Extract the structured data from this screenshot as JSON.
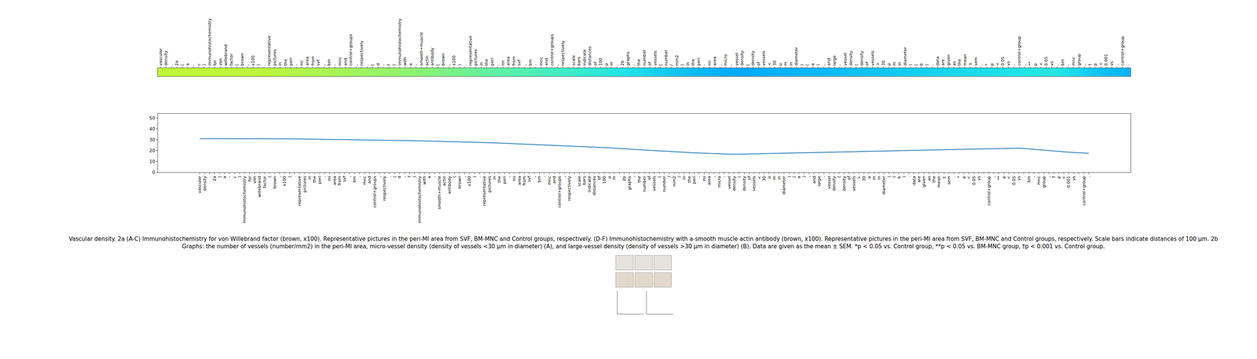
{
  "chart_data": [
    {
      "type": "heatmap",
      "tick_labels": "x",
      "categories": [
        "vascular",
        "density",
        ".",
        "2a",
        "(",
        "a",
        "-",
        "c",
        ")",
        "immunohistochemistry",
        "for",
        "von",
        "willebrand",
        "factor",
        "(",
        "brown",
        ",",
        "x100",
        ")",
        ".",
        "representative",
        "pictures",
        "in",
        "the",
        "peri",
        "-",
        "mi",
        "area",
        "from",
        "svf",
        ",",
        "bm",
        "-",
        "mnc",
        "and",
        "control+groups",
        ",",
        "respectively",
        ".",
        "(",
        "d",
        "-",
        "f",
        ")",
        "immunohistochemistry",
        "with",
        "a",
        "-",
        "smooth+muscle",
        "actin",
        "antibody",
        "(",
        "brown",
        ",",
        "x100",
        ")",
        ".",
        "representative",
        "pictures",
        "in",
        "the",
        "peri",
        "-",
        "mi",
        "area",
        "from",
        "svf",
        ",",
        "bm",
        "-",
        "mnc",
        "and",
        "control+groups",
        ",",
        "respectively",
        ".",
        "scale",
        "bars",
        "indicate",
        "distances",
        "of",
        "100",
        "μ",
        "m",
        ".",
        "2b",
        "graphs",
        ":",
        "the",
        "number",
        "of",
        "vessels",
        "(",
        "number",
        "/",
        "mm2",
        ")",
        "in",
        "the",
        "peri",
        "-",
        "mi",
        "area",
        ",",
        "micro",
        "-",
        "vessel",
        "density",
        "(",
        "density",
        "of",
        "vessels",
        "<",
        "30",
        "μ",
        "m",
        "in",
        "diameter",
        ")",
        "(",
        "a",
        ")",
        ",",
        "and",
        "large",
        "-",
        "vessel",
        "density",
        "(",
        "density",
        "of",
        "vessels",
        ">",
        "30",
        "μ",
        "m",
        "in",
        "diameter",
        ")",
        "(",
        "b",
        ")",
        ".",
        "data",
        "are",
        "given",
        "as",
        "the",
        "mean",
        "±",
        "sem",
        ".",
        "*",
        "p",
        "<",
        "0.05",
        "vs",
        ".",
        "control+group",
        ",",
        "**",
        "p",
        "<",
        "0.05",
        "vs",
        ".",
        "bm",
        "-",
        "mnc",
        "group",
        ",",
        "†",
        "p",
        "<",
        "0.001",
        "vs",
        ".",
        "control+group",
        "."
      ],
      "values": [
        31.0,
        31.0,
        31.0,
        31.0,
        31.0,
        31.0,
        31.0,
        31.0,
        31.0,
        31.0,
        31.0,
        31.0,
        31.0,
        31.0,
        31.0,
        30.9,
        30.9,
        30.9,
        30.9,
        30.8,
        30.8,
        30.7,
        30.6,
        30.6,
        30.5,
        30.4,
        30.4,
        30.3,
        30.2,
        30.2,
        30.1,
        30.0,
        30.0,
        29.9,
        29.8,
        29.7,
        29.6,
        29.5,
        29.5,
        29.4,
        29.3,
        29.2,
        29.2,
        29.1,
        29.0,
        28.9,
        28.8,
        28.7,
        28.6,
        28.5,
        28.4,
        28.2,
        28.1,
        28.0,
        27.9,
        27.7,
        27.6,
        27.4,
        27.3,
        27.1,
        26.9,
        26.8,
        26.6,
        26.4,
        26.3,
        26.1,
        25.9,
        25.8,
        25.6,
        25.4,
        25.2,
        25.0,
        24.8,
        24.6,
        24.4,
        24.2,
        24.0,
        23.8,
        23.5,
        23.3,
        23.1,
        22.8,
        22.6,
        22.3,
        22.0,
        21.8,
        21.5,
        21.2,
        21.0,
        20.7,
        20.4,
        20.1,
        19.8,
        19.6,
        19.3,
        19.0,
        18.8,
        18.5,
        18.3,
        18.0,
        17.8,
        17.6,
        17.4,
        17.2,
        17.0,
        16.9,
        16.8,
        16.7,
        16.8,
        16.9,
        17.0,
        17.1,
        17.2,
        17.3,
        17.4,
        17.5,
        17.6,
        17.7,
        17.7,
        17.8,
        17.9,
        18.0,
        18.1,
        18.2,
        18.3,
        18.4,
        18.5,
        18.6,
        18.7,
        18.8,
        18.9,
        19.0,
        19.1,
        19.2,
        19.3,
        19.4,
        19.6,
        19.7,
        19.8,
        19.9,
        20.0,
        20.1,
        20.2,
        20.3,
        20.4,
        20.5,
        20.6,
        20.7,
        20.8,
        20.9,
        21.0,
        21.1,
        21.2,
        21.3,
        21.4,
        21.5,
        21.6,
        21.7,
        21.8,
        21.9,
        22.0,
        22.1,
        22.2,
        22.2,
        22.3,
        22.0,
        21.6,
        21.2,
        20.8,
        20.4,
        20.0,
        19.6,
        19.2,
        18.9,
        18.6,
        18.3,
        18.0,
        17.8,
        17.5
      ]
    },
    {
      "type": "line",
      "color": "#1f77b4",
      "grid": false,
      "ylim": [
        0,
        54
      ],
      "yticks": [
        0,
        10,
        20,
        30,
        40,
        50
      ],
      "categories": [
        "vascular",
        "density",
        ".",
        "2a",
        "(",
        "a",
        "-",
        "c",
        ")",
        "immunohistochemistry",
        "for",
        "von",
        "willebrand",
        "factor",
        "(",
        "brown",
        ",",
        "x100",
        ")",
        ".",
        "representative",
        "pictures",
        "in",
        "the",
        "peri",
        "-",
        "mi",
        "area",
        "from",
        "svf",
        ",",
        "bm",
        "-",
        "mnc",
        "and",
        "control+groups",
        ",",
        "respectively",
        ".",
        "(",
        "d",
        "-",
        "f",
        ")",
        "immunohistochemistry",
        "with",
        "a",
        "-",
        "smooth+muscle",
        "actin",
        "antibody",
        "(",
        "brown",
        ",",
        "x100",
        ")",
        ".",
        "representative",
        "pictures",
        "in",
        "the",
        "peri",
        "-",
        "mi",
        "area",
        "from",
        "svf",
        ",",
        "bm",
        "-",
        "mnc",
        "and",
        "control+groups",
        ",",
        "respectively",
        ".",
        "scale",
        "bars",
        "indicate",
        "distances",
        "of",
        "100",
        "μ",
        "m",
        ".",
        "2b",
        "graphs",
        ":",
        "the",
        "number",
        "of",
        "vessels",
        "(",
        "number",
        "/",
        "mm2",
        ")",
        "in",
        "the",
        "peri",
        "-",
        "mi",
        "area",
        ",",
        "micro",
        "-",
        "vessel",
        "density",
        "(",
        "density",
        "of",
        "vessels",
        "<",
        "30",
        "μ",
        "m",
        "in",
        "diameter",
        ")",
        "(",
        "a",
        ")",
        ",",
        "and",
        "large",
        "-",
        "vessel",
        "density",
        "(",
        "density",
        "of",
        "vessels",
        ">",
        "30",
        "μ",
        "m",
        "in",
        "diameter",
        ")",
        "(",
        "b",
        ")",
        ".",
        "data",
        "are",
        "given",
        "as",
        "the",
        "mean",
        "±",
        "sem",
        ".",
        "*",
        "p",
        "<",
        "0.05",
        "vs",
        ".",
        "control+group",
        ",",
        "**",
        "p",
        "<",
        "0.05",
        "vs",
        ".",
        "bm",
        "-",
        "mnc",
        "group",
        ",",
        "†",
        "p",
        "<",
        "0.001",
        "vs",
        ".",
        "control+group",
        "."
      ],
      "values": [
        31.0,
        31.0,
        31.0,
        31.0,
        31.0,
        31.0,
        31.0,
        31.0,
        31.0,
        31.0,
        31.0,
        31.0,
        31.0,
        31.0,
        31.0,
        30.9,
        30.9,
        30.9,
        30.9,
        30.8,
        30.8,
        30.7,
        30.6,
        30.6,
        30.5,
        30.4,
        30.4,
        30.3,
        30.2,
        30.2,
        30.1,
        30.0,
        30.0,
        29.9,
        29.8,
        29.7,
        29.6,
        29.5,
        29.5,
        29.4,
        29.3,
        29.2,
        29.2,
        29.1,
        29.0,
        28.9,
        28.8,
        28.7,
        28.6,
        28.5,
        28.4,
        28.2,
        28.1,
        28.0,
        27.9,
        27.7,
        27.6,
        27.4,
        27.3,
        27.1,
        26.9,
        26.8,
        26.6,
        26.4,
        26.3,
        26.1,
        25.9,
        25.8,
        25.6,
        25.4,
        25.2,
        25.0,
        24.8,
        24.6,
        24.4,
        24.2,
        24.0,
        23.8,
        23.5,
        23.3,
        23.1,
        22.8,
        22.6,
        22.3,
        22.0,
        21.8,
        21.5,
        21.2,
        21.0,
        20.7,
        20.4,
        20.1,
        19.8,
        19.6,
        19.3,
        19.0,
        18.8,
        18.5,
        18.3,
        18.0,
        17.8,
        17.6,
        17.4,
        17.2,
        17.0,
        16.9,
        16.8,
        16.7,
        16.8,
        16.9,
        17.0,
        17.1,
        17.2,
        17.3,
        17.4,
        17.5,
        17.6,
        17.7,
        17.7,
        17.8,
        17.9,
        18.0,
        18.1,
        18.2,
        18.3,
        18.4,
        18.5,
        18.6,
        18.7,
        18.8,
        18.9,
        19.0,
        19.1,
        19.2,
        19.3,
        19.4,
        19.6,
        19.7,
        19.8,
        19.9,
        20.0,
        20.1,
        20.2,
        20.3,
        20.4,
        20.5,
        20.6,
        20.7,
        20.8,
        20.9,
        21.0,
        21.1,
        21.2,
        21.3,
        21.4,
        21.5,
        21.6,
        21.7,
        21.8,
        21.9,
        22.0,
        22.1,
        22.2,
        22.2,
        22.3,
        22.0,
        21.6,
        21.2,
        20.8,
        20.4,
        20.0,
        19.6,
        19.2,
        18.9,
        18.6,
        18.3,
        18.0,
        17.8,
        17.5
      ]
    }
  ],
  "caption": [
    "Vascular density. 2a (A-C) Immunohistochemistry for von Willebrand factor (brown, x100). Representative pictures in the peri-MI area from SVF, BM-MNC and Control groups, respectively. (D-F) Immunohistochemistry with a-smooth muscle actin antibody (brown, x100). Representative pictures in the peri-MI area from SVF, BM-MNC and Control groups, respectively. Scale bars indicate distances of 100 μm. 2b",
    "Graphs: the number of vessels (number/mm2) in the peri-MI area, micro-vessel density (density of vessels <30 μm in diameter) (A), and large-vessel density (density of vessels >30 μm in diameter) (B). Data are given as the mean ± SEM. *p < 0.05 vs. Control group, **p < 0.05 vs. BM-MNC group, †p < 0.001 vs. Control group."
  ]
}
